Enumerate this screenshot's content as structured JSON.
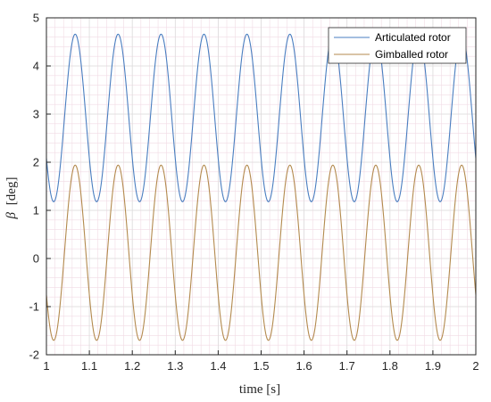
{
  "chart_data": {
    "type": "line",
    "title": "",
    "xlabel": "time [s]",
    "ylabel_symbol": "β",
    "ylabel_unit": "[deg]",
    "xlim": [
      1,
      2
    ],
    "ylim": [
      -2,
      5
    ],
    "xticks": [
      "1",
      "1.1",
      "1.2",
      "1.3",
      "1.4",
      "1.5",
      "1.6",
      "1.7",
      "1.8",
      "1.9",
      "2"
    ],
    "yticks": [
      "-2",
      "-1",
      "0",
      "1",
      "2",
      "3",
      "4",
      "5"
    ],
    "grid": true,
    "minor_grid": true,
    "legend_position": "top-right",
    "series": [
      {
        "name": "Articulated rotor",
        "color": "#4a7ec0",
        "shape": "sinusoid",
        "mean": 2.92,
        "amplitude": 1.74,
        "period": 0.1,
        "first_peak_x": 1.067
      },
      {
        "name": "Gimballed rotor",
        "color": "#b38a4e",
        "shape": "sinusoid",
        "mean": 0.12,
        "amplitude": 1.82,
        "period": 0.1,
        "first_peak_x": 1.067
      }
    ]
  }
}
